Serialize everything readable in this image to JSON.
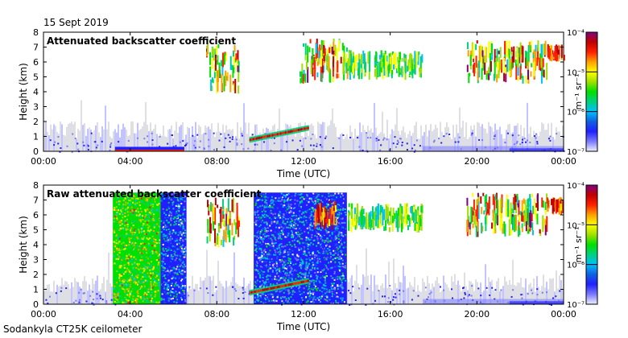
{
  "date": "15 Sept 2019",
  "footer": "Sodankyla CT25K ceilometer",
  "colorbar": {
    "unit": "m⁻¹ sr⁻¹",
    "labels": [
      "10⁻⁴",
      "10⁻⁵",
      "10⁻⁶",
      "10⁻⁷"
    ],
    "scale": "log",
    "range": [
      1e-07,
      0.0001
    ],
    "colors": [
      "#f0f0ff",
      "#7a7aff",
      "#2020ff",
      "#1060e0",
      "#00c0ff",
      "#00d080",
      "#00e000",
      "#a0e000",
      "#ffff00",
      "#ffa000",
      "#ff2000",
      "#c00000",
      "#800080"
    ]
  },
  "chart_data": [
    {
      "type": "heatmap",
      "title": "Attenuated backscatter coefficient",
      "xlabel": "Time (UTC)",
      "ylabel": "Height (km)",
      "x_ticks": [
        "00:00",
        "04:00",
        "08:00",
        "12:00",
        "16:00",
        "20:00",
        "00:00"
      ],
      "xlim_hours": [
        0,
        24
      ],
      "y_ticks": [
        "0",
        "1",
        "2",
        "3",
        "4",
        "5",
        "6",
        "7",
        "8"
      ],
      "ylim": [
        0,
        8
      ],
      "colorscale": "log",
      "features": [
        {
          "kind": "boundary-layer",
          "t": [
            0,
            24
          ],
          "h": [
            0,
            2.5
          ],
          "level": "1e-7 to 1e-6"
        },
        {
          "kind": "rising-layer",
          "t": [
            9.5,
            12.2
          ],
          "h": [
            0.8,
            1.6
          ],
          "level": "1e-5 to 1e-4"
        },
        {
          "kind": "surface-band",
          "t": [
            3.3,
            6.5
          ],
          "h": [
            0,
            0.3
          ],
          "level": "1e-6 to 1e-4"
        },
        {
          "kind": "cloud",
          "t": [
            7.5,
            9.0
          ],
          "h": [
            3.8,
            7.2
          ],
          "level": "1e-6 to 1e-4"
        },
        {
          "kind": "cloud",
          "t": [
            11.8,
            14.0
          ],
          "h": [
            4.5,
            7.6
          ],
          "level": "1e-6 to 1e-4"
        },
        {
          "kind": "cloud",
          "t": [
            14.0,
            17.5
          ],
          "h": [
            4.8,
            6.8
          ],
          "level": "1e-6 to 1e-5"
        },
        {
          "kind": "cloud",
          "t": [
            19.5,
            23.2
          ],
          "h": [
            4.5,
            7.5
          ],
          "level": "1e-6 to 1e-4"
        },
        {
          "kind": "cloud",
          "t": [
            23.2,
            24
          ],
          "h": [
            6.0,
            7.2
          ],
          "level": "1e-5 to 1e-4"
        }
      ]
    },
    {
      "type": "heatmap",
      "title": "Raw attenuated backscatter coefficient",
      "xlabel": "Time (UTC)",
      "ylabel": "Height (km)",
      "x_ticks": [
        "00:00",
        "04:00",
        "08:00",
        "12:00",
        "16:00",
        "20:00",
        "00:00"
      ],
      "xlim_hours": [
        0,
        24
      ],
      "y_ticks": [
        "0",
        "1",
        "2",
        "3",
        "4",
        "5",
        "6",
        "7",
        "8"
      ],
      "ylim": [
        0,
        8
      ],
      "colorscale": "log",
      "features": [
        {
          "kind": "boundary-layer",
          "t": [
            0,
            24
          ],
          "h": [
            0,
            2.5
          ],
          "level": "1e-7 to 1e-6"
        },
        {
          "kind": "noise-block",
          "t": [
            3.2,
            5.4
          ],
          "h": [
            0,
            7.5
          ],
          "level": "1e-6 to 1e-5"
        },
        {
          "kind": "noise-block",
          "t": [
            5.4,
            6.6
          ],
          "h": [
            0,
            7.5
          ],
          "level": "1e-7 to 1e-6"
        },
        {
          "kind": "noise-block",
          "t": [
            9.7,
            14.0
          ],
          "h": [
            0,
            7.5
          ],
          "level": "1e-7 to 1e-6"
        },
        {
          "kind": "rising-layer",
          "t": [
            9.5,
            12.2
          ],
          "h": [
            0.8,
            1.6
          ],
          "level": "1e-5 to 1e-4"
        },
        {
          "kind": "cloud",
          "t": [
            7.5,
            9.0
          ],
          "h": [
            3.8,
            7.2
          ],
          "level": "1e-6 to 1e-4"
        },
        {
          "kind": "cloud",
          "t": [
            12.5,
            13.5
          ],
          "h": [
            5.0,
            7.0
          ],
          "level": "1e-5 to 1e-4"
        },
        {
          "kind": "cloud",
          "t": [
            14.0,
            17.5
          ],
          "h": [
            4.8,
            6.8
          ],
          "level": "1e-6 to 1e-5"
        },
        {
          "kind": "cloud",
          "t": [
            19.5,
            23.2
          ],
          "h": [
            4.5,
            7.5
          ],
          "level": "1e-6 to 1e-4"
        },
        {
          "kind": "cloud",
          "t": [
            23.2,
            24
          ],
          "h": [
            6.0,
            7.2
          ],
          "level": "1e-5 to 1e-4"
        }
      ]
    }
  ]
}
